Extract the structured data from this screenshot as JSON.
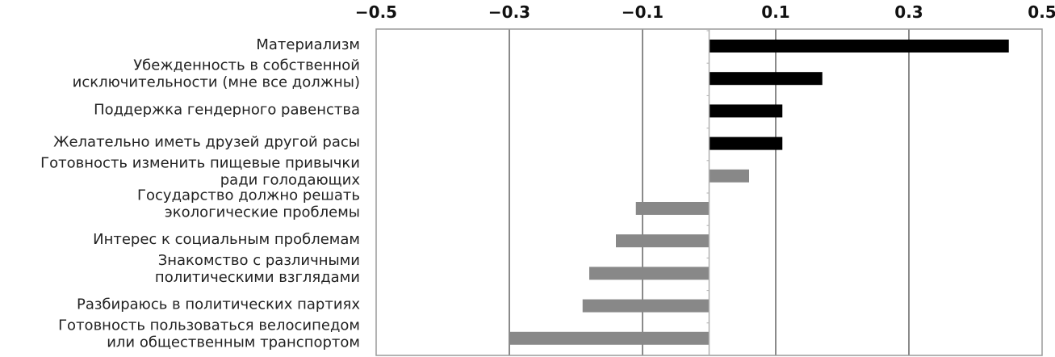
{
  "chart_data": {
    "type": "bar",
    "orientation": "horizontal",
    "title": "",
    "xlabel": "",
    "ylabel": "",
    "xlim": [
      -0.5,
      0.5
    ],
    "xticks": [
      -0.5,
      -0.3,
      -0.1,
      0.1,
      0.3,
      0.5
    ],
    "xtick_labels": [
      "−0.5",
      "−0.3",
      "−0.1",
      "0.1",
      "0.3",
      "0.5"
    ],
    "grid": true,
    "axis_position": "top",
    "categories": [
      [
        "Материализм"
      ],
      [
        "Убежденность в собственной",
        "исключительности (мне все должны)"
      ],
      [
        "Поддержка гендерного равенства"
      ],
      [
        "Желательно иметь друзей другой расы"
      ],
      [
        "Готовность изменить пищевые привычки",
        "ради голодающих"
      ],
      [
        "Государство должно решать",
        "экологические проблемы"
      ],
      [
        "Интерес к социальным проблемам"
      ],
      [
        "Знакомство с различными",
        "политическими взглядами"
      ],
      [
        "Разбираюсь в политических партиях"
      ],
      [
        "Готовность пользоваться велосипедом",
        "или общественным транспортом"
      ]
    ],
    "values": [
      0.45,
      0.17,
      0.11,
      0.11,
      0.06,
      -0.11,
      -0.14,
      -0.18,
      -0.19,
      -0.3
    ],
    "colors": {
      "strong": "#000000",
      "weak": "#888888",
      "grid": "#8a8a8a",
      "frame": "#9a9a9a"
    },
    "bar_shades": [
      "strong",
      "strong",
      "strong",
      "strong",
      "weak",
      "weak",
      "weak",
      "weak",
      "weak",
      "weak"
    ]
  }
}
